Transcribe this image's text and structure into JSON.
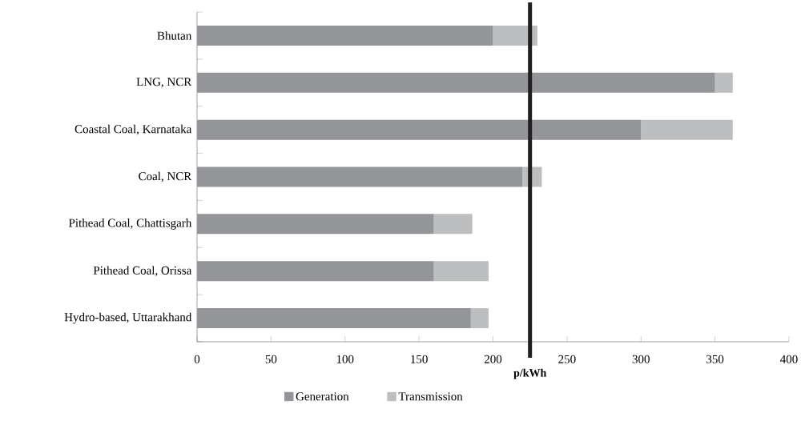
{
  "chart_data": {
    "type": "bar",
    "orientation": "horizontal",
    "stacked": true,
    "categories": [
      "Bhutan",
      "LNG, NCR",
      "Coastal Coal, Karnataka",
      "Coal, NCR",
      "Pithead Coal, Chattisgarh",
      "Pithead Coal, Orissa",
      "Hydro-based, Uttarakhand"
    ],
    "series": [
      {
        "name": "Generation",
        "color": "#939598",
        "values": [
          200,
          350,
          300,
          220,
          160,
          160,
          185
        ]
      },
      {
        "name": "Transmission",
        "color": "#bcbec0",
        "values": [
          30,
          12,
          62,
          13,
          26,
          37,
          12
        ]
      }
    ],
    "xlim": [
      0,
      400
    ],
    "xticks": [
      0,
      50,
      100,
      150,
      200,
      250,
      300,
      350,
      400
    ],
    "ref_lines": [
      {
        "axis": "x",
        "value": 225,
        "label": "p/kWh",
        "color": "#231f20"
      }
    ],
    "grid": false,
    "legend": "bottom"
  }
}
